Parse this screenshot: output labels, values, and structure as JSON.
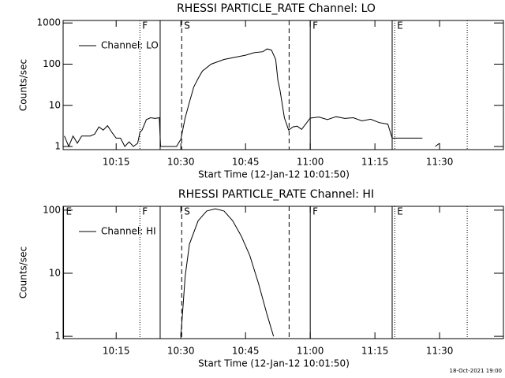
{
  "chart_data": [
    {
      "type": "line",
      "title": "RHESSI PARTICLE_RATE Channel: LO",
      "xlabel": "Start Time (12-Jan-12 10:01:50)",
      "ylabel": "Counts/sec",
      "log_y": true,
      "legend": "upper left",
      "x": [
        3,
        4,
        5,
        6,
        7,
        8,
        9,
        10,
        11,
        12,
        13,
        14,
        15,
        16,
        17,
        18,
        19,
        20,
        20.5,
        21,
        22,
        23,
        24,
        25,
        25.3,
        26,
        27,
        28,
        29,
        30,
        31,
        32,
        33,
        34,
        35,
        37,
        40,
        43,
        45,
        47,
        49,
        50,
        51,
        52,
        52.5,
        53,
        54,
        55,
        56,
        57,
        58,
        60,
        62,
        64,
        66,
        68,
        70,
        72,
        74,
        76,
        78,
        79,
        80,
        82,
        84,
        86,
        87,
        88,
        89,
        90,
        91
      ],
      "series": [
        {
          "name": "Channel: LO",
          "color": "#000000",
          "values": [
            1.8,
            1,
            1.8,
            1.2,
            1.8,
            1.8,
            1.8,
            2,
            3,
            2.5,
            3.2,
            2.2,
            1.6,
            1.6,
            1,
            1.3,
            1,
            1.2,
            2.2,
            2.5,
            4.5,
            5,
            4.8,
            5,
            1,
            1,
            1,
            1,
            1,
            1.5,
            5,
            12,
            28,
            45,
            68,
            100,
            130,
            150,
            165,
            190,
            200,
            235,
            220,
            130,
            40,
            23,
            5,
            2.5,
            3,
            3.1,
            2.6,
            4.9,
            5.2,
            4.5,
            5.3,
            4.8,
            5,
            4.2,
            4.6,
            3.8,
            3.5,
            1.6,
            1.6,
            1.6,
            1.6,
            1.6,
            null,
            null,
            1,
            1.2,
            null
          ]
        }
      ],
      "xlim": [
        2.7,
        104.8
      ],
      "xticks": [
        {
          "value": 15,
          "label": "10:15"
        },
        {
          "value": 30,
          "label": "10:30"
        },
        {
          "value": 45,
          "label": "10:45"
        },
        {
          "value": 60,
          "label": "11:00"
        },
        {
          "value": 75,
          "label": "11:15"
        },
        {
          "value": 90,
          "label": "11:30"
        }
      ],
      "ylim": [
        0.84,
        1150
      ],
      "yticks": [
        1,
        10,
        100,
        1000
      ],
      "markers": [
        {
          "x": 20.5,
          "style": "dotted",
          "label": "F"
        },
        {
          "x": 25.2,
          "style": "solid"
        },
        {
          "x": 30.2,
          "style": "dashed",
          "label": "S"
        },
        {
          "x": 55.1,
          "style": "dashed"
        },
        {
          "x": 60,
          "style": "solid",
          "label": "F"
        },
        {
          "x": 79,
          "style": "solid"
        },
        {
          "x": 79.6,
          "style": "dotted",
          "label": "E"
        },
        {
          "x": 96.4,
          "style": "dotted"
        }
      ]
    },
    {
      "type": "line",
      "title": "RHESSI PARTICLE_RATE Channel: HI",
      "xlabel": "Start Time (12-Jan-12 10:01:50)",
      "ylabel": "Counts/sec",
      "log_y": true,
      "legend": "upper left",
      "x": [
        30,
        31,
        32,
        34,
        36,
        38,
        40,
        42,
        44,
        46,
        48,
        50,
        51.5
      ],
      "series": [
        {
          "name": "Channel: HI",
          "color": "#000000",
          "values": [
            1,
            9,
            29,
            68,
            97,
            105,
            97,
            68,
            39,
            19,
            6.9,
            2.2,
            1
          ]
        }
      ],
      "xlim": [
        2.7,
        104.8
      ],
      "xticks": [
        {
          "value": 15,
          "label": "10:15"
        },
        {
          "value": 30,
          "label": "10:30"
        },
        {
          "value": 45,
          "label": "10:45"
        },
        {
          "value": 60,
          "label": "11:00"
        },
        {
          "value": 75,
          "label": "11:15"
        },
        {
          "value": 90,
          "label": "11:30"
        }
      ],
      "ylim": [
        0.92,
        115
      ],
      "yticks": [
        1,
        10,
        100
      ],
      "markers": [
        {
          "x": 2.8,
          "style": "solid",
          "label": "E"
        },
        {
          "x": 20.5,
          "style": "dotted",
          "label": "F"
        },
        {
          "x": 25.2,
          "style": "solid"
        },
        {
          "x": 30.2,
          "style": "dashed",
          "label": "S"
        },
        {
          "x": 55.1,
          "style": "dashed"
        },
        {
          "x": 60,
          "style": "solid",
          "label": "F"
        },
        {
          "x": 79,
          "style": "solid"
        },
        {
          "x": 79.6,
          "style": "dotted",
          "label": "E"
        },
        {
          "x": 96.4,
          "style": "dotted"
        }
      ]
    }
  ],
  "timestamp": "18-Oct-2021 19:00"
}
